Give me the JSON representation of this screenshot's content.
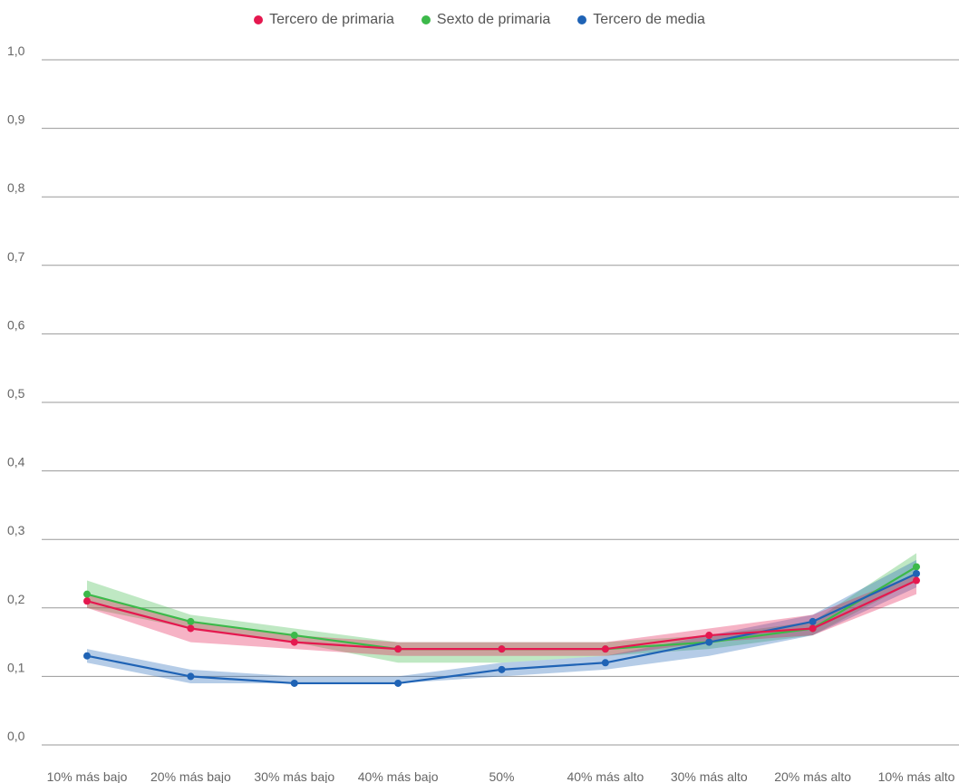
{
  "chart_data": {
    "type": "line",
    "categories": [
      "10% más bajo",
      "20% más bajo",
      "30% más bajo",
      "40% más bajo",
      "50%",
      "40% más alto",
      "30% más alto",
      "20% más alto",
      "10% más alto"
    ],
    "ylim": [
      0.0,
      1.0
    ],
    "y_ticks": [
      "0,0",
      "0,1",
      "0,2",
      "0,3",
      "0,4",
      "0,5",
      "0,6",
      "0,7",
      "0,8",
      "0,9",
      "1,0"
    ],
    "grid": true,
    "legend_position": "top-center",
    "series": [
      {
        "name": "Sexto de primaria",
        "color": "#3cb94a",
        "values": [
          0.22,
          0.18,
          0.16,
          0.14,
          0.14,
          0.14,
          0.15,
          0.17,
          0.26
        ],
        "lower": [
          0.2,
          0.17,
          0.15,
          0.12,
          0.12,
          0.13,
          0.14,
          0.16,
          0.24
        ],
        "upper": [
          0.24,
          0.19,
          0.17,
          0.15,
          0.15,
          0.15,
          0.16,
          0.18,
          0.28
        ]
      },
      {
        "name": "Tercero de media",
        "color": "#1f63b5",
        "values": [
          0.13,
          0.1,
          0.09,
          0.09,
          0.11,
          0.12,
          0.15,
          0.18,
          0.25
        ],
        "lower": [
          0.12,
          0.09,
          0.09,
          0.09,
          0.1,
          0.11,
          0.13,
          0.16,
          0.23
        ],
        "upper": [
          0.14,
          0.11,
          0.1,
          0.1,
          0.12,
          0.13,
          0.16,
          0.19,
          0.27
        ]
      },
      {
        "name": "Tercero de primaria",
        "color": "#e5184f",
        "values": [
          0.21,
          0.17,
          0.15,
          0.14,
          0.14,
          0.14,
          0.16,
          0.17,
          0.24
        ],
        "lower": [
          0.2,
          0.15,
          0.14,
          0.13,
          0.13,
          0.13,
          0.15,
          0.16,
          0.22
        ],
        "upper": [
          0.22,
          0.18,
          0.16,
          0.15,
          0.15,
          0.15,
          0.17,
          0.19,
          0.25
        ]
      }
    ],
    "legend_order": [
      "Tercero de primaria",
      "Sexto de primaria",
      "Tercero de media"
    ]
  }
}
